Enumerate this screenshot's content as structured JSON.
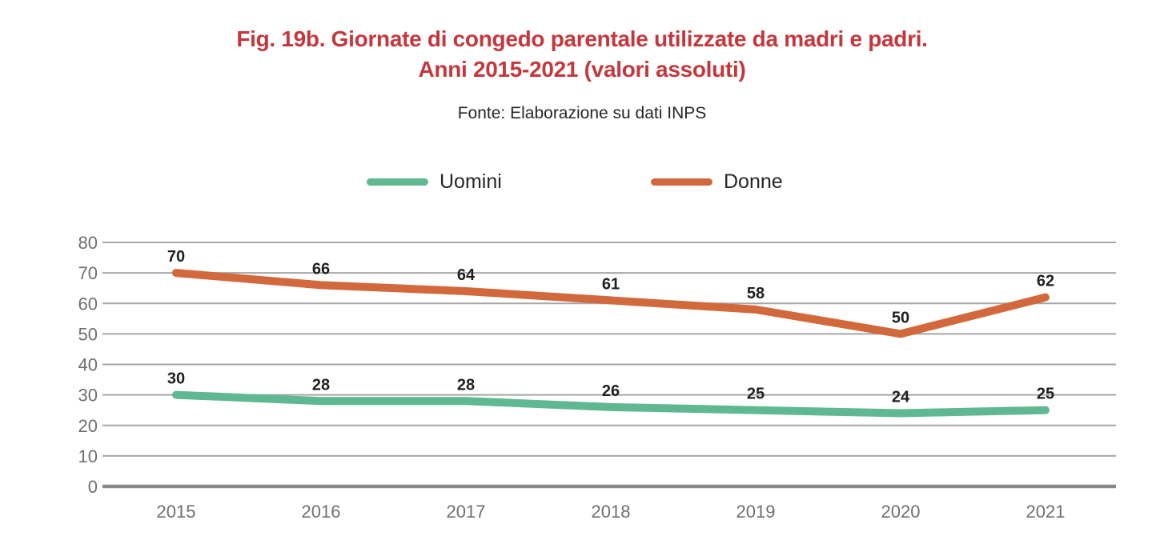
{
  "page": {
    "title_line1": "Fig. 19b. Giornate di congedo parentale utilizzate da madri e padri.",
    "title_line2": "Anni 2015-2021 (valori assoluti)",
    "source": "Fonte: Elaborazione su dati INPS"
  },
  "colors": {
    "title_red": "#C4383D",
    "uomini_green": "#5FB891",
    "donne_orange": "#D2693C",
    "gridline": "#A6A6A6",
    "axis_line": "#8A8A8A",
    "tick_text": "#6F6F6F",
    "data_label": "#1F1F1F"
  },
  "chart_data": {
    "type": "line",
    "title": "Fig. 19b. Giornate di congedo parentale utilizzate da madri e padri. Anni 2015-2021 (valori assoluti)",
    "source": "Fonte: Elaborazione su dati INPS",
    "categories": [
      "2015",
      "2016",
      "2017",
      "2018",
      "2019",
      "2020",
      "2021"
    ],
    "series": [
      {
        "name": "Uomini",
        "color": "#5FB891",
        "values": [
          30,
          28,
          28,
          26,
          25,
          24,
          25
        ]
      },
      {
        "name": "Donne",
        "color": "#D2693C",
        "values": [
          70,
          66,
          64,
          61,
          58,
          50,
          62
        ]
      }
    ],
    "xlabel": "",
    "ylabel": "",
    "ylim": [
      0,
      80
    ],
    "yticks": [
      0,
      10,
      20,
      30,
      40,
      50,
      60,
      70,
      80
    ],
    "grid": true,
    "legend_position": "top",
    "data_labels": true
  }
}
